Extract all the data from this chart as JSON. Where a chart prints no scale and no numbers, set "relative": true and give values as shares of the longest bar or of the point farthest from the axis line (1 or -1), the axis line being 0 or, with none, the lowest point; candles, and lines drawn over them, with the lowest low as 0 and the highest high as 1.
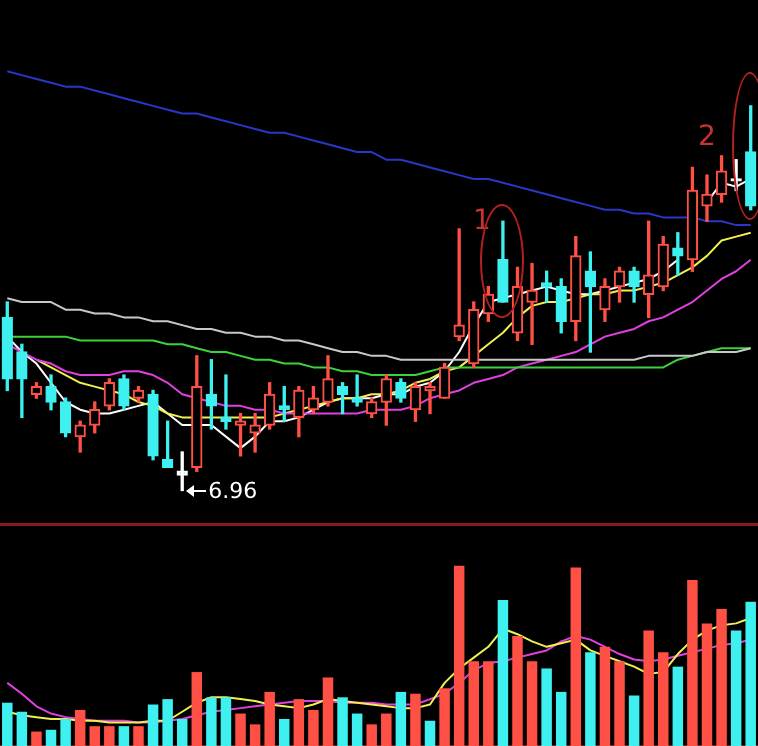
{
  "chart_data": [
    {
      "type": "candlestick",
      "relative": true,
      "categories": [
        null,
        null,
        null,
        null,
        null,
        null,
        null,
        null,
        null,
        null,
        null,
        null,
        null,
        null,
        null,
        null,
        null,
        null,
        null,
        null,
        null,
        null,
        null,
        null,
        null,
        null,
        null,
        null,
        null,
        null,
        null,
        null,
        null,
        null,
        null,
        null,
        null,
        null,
        null,
        null,
        null,
        null,
        null,
        null,
        null,
        null,
        null,
        null,
        null,
        null,
        null,
        null
      ],
      "ohlc": [
        [
          0.45,
          0.49,
          0.26,
          0.29
        ],
        [
          0.36,
          0.38,
          0.19,
          0.29
        ],
        [
          0.25,
          0.28,
          0.24,
          0.27
        ],
        [
          0.27,
          0.3,
          0.21,
          0.23
        ],
        [
          0.23,
          0.24,
          0.14,
          0.15
        ],
        [
          0.14,
          0.18,
          0.1,
          0.17
        ],
        [
          0.17,
          0.23,
          0.15,
          0.21
        ],
        [
          0.22,
          0.29,
          0.21,
          0.28
        ],
        [
          0.29,
          0.3,
          0.21,
          0.22
        ],
        [
          0.24,
          0.27,
          0.23,
          0.26
        ],
        [
          0.25,
          0.26,
          0.08,
          0.09
        ],
        [
          0.08,
          0.18,
          0.06,
          0.06
        ],
        [
          0.05,
          0.1,
          0,
          0.04
        ],
        [
          0.06,
          0.35,
          0.05,
          0.27
        ],
        [
          0.25,
          0.34,
          0.16,
          0.22
        ],
        [
          0.19,
          0.3,
          0.16,
          0.18
        ],
        [
          0.17,
          0.2,
          0.09,
          0.18
        ],
        [
          0.15,
          0.2,
          0.1,
          0.17
        ],
        [
          0.17,
          0.28,
          0.16,
          0.25
        ],
        [
          0.22,
          0.27,
          0.18,
          0.21
        ],
        [
          0.19,
          0.27,
          0.14,
          0.26
        ],
        [
          0.21,
          0.27,
          0.2,
          0.24
        ],
        [
          0.23,
          0.35,
          0.22,
          0.29
        ],
        [
          0.27,
          0.28,
          0.2,
          0.25
        ],
        [
          0.24,
          0.3,
          0.22,
          0.23
        ],
        [
          0.2,
          0.24,
          0.19,
          0.23
        ],
        [
          0.23,
          0.3,
          0.17,
          0.29
        ],
        [
          0.28,
          0.29,
          0.23,
          0.24
        ],
        [
          0.21,
          0.28,
          0.18,
          0.27
        ],
        [
          0.26,
          0.28,
          0.2,
          0.27
        ],
        [
          0.24,
          0.33,
          0.24,
          0.32
        ],
        [
          0.4,
          0.68,
          0.39,
          0.43
        ],
        [
          0.33,
          0.49,
          0.32,
          0.47
        ],
        [
          0.46,
          0.53,
          0.44,
          0.51
        ],
        [
          0.6,
          0.7,
          0.49,
          0.49
        ],
        [
          0.41,
          0.58,
          0.39,
          0.53
        ],
        [
          0.49,
          0.59,
          0.38,
          0.52
        ],
        [
          0.54,
          0.57,
          0.49,
          0.53
        ],
        [
          0.53,
          0.55,
          0.41,
          0.44
        ],
        [
          0.44,
          0.66,
          0.39,
          0.61
        ],
        [
          0.57,
          0.62,
          0.36,
          0.53
        ],
        [
          0.47,
          0.55,
          0.44,
          0.53
        ],
        [
          0.53,
          0.58,
          0.49,
          0.57
        ],
        [
          0.57,
          0.58,
          0.49,
          0.53
        ],
        [
          0.51,
          0.7,
          0.45,
          0.56
        ],
        [
          0.53,
          0.66,
          0.52,
          0.64
        ],
        [
          0.63,
          0.67,
          0.56,
          0.61
        ],
        [
          0.6,
          0.84,
          0.57,
          0.78
        ],
        [
          0.74,
          0.82,
          0.7,
          0.77
        ],
        [
          0.77,
          0.87,
          0.75,
          0.83
        ],
        [
          0.81,
          0.86,
          0.78,
          0.81
        ],
        [
          0.88,
          1,
          0.73,
          0.74
        ]
      ],
      "colors": [
        "#3ef0f0",
        "#3ef0f0",
        "#ff5046",
        "#3ef0f0",
        "#3ef0f0",
        "#ff5046",
        "#ff5046",
        "#ff5046",
        "#3ef0f0",
        "#ff5046",
        "#3ef0f0",
        "#3ef0f0",
        "#ffffff",
        "#ff5046",
        "#3ef0f0",
        "#3ef0f0",
        "#ff5046",
        "#ff5046",
        "#ff5046",
        "#3ef0f0",
        "#ff5046",
        "#ff5046",
        "#ff5046",
        "#3ef0f0",
        "#3ef0f0",
        "#ff5046",
        "#ff5046",
        "#3ef0f0",
        "#ff5046",
        "#ff5046",
        "#ff5046",
        "#ff5046",
        "#ff5046",
        "#ff5046",
        "#3ef0f0",
        "#ff5046",
        "#ff5046",
        "#3ef0f0",
        "#3ef0f0",
        "#ff5046",
        "#3ef0f0",
        "#ff5046",
        "#ff5046",
        "#3ef0f0",
        "#ff5046",
        "#ff5046",
        "#3ef0f0",
        "#ff5046",
        "#ff5046",
        "#ff5046",
        "#ffffff",
        "#3ef0f0"
      ],
      "series": [
        {
          "type": "line",
          "color": "#2a36c8",
          "values": [
            1.09,
            1.08,
            1.07,
            1.06,
            1.05,
            1.05,
            1.04,
            1.03,
            1.02,
            1.01,
            1.0,
            0.99,
            0.98,
            0.98,
            0.97,
            0.96,
            0.95,
            0.94,
            0.93,
            0.93,
            0.92,
            0.91,
            0.9,
            0.89,
            0.88,
            0.88,
            0.86,
            0.86,
            0.85,
            0.84,
            0.83,
            0.82,
            0.81,
            0.81,
            0.8,
            0.79,
            0.78,
            0.77,
            0.76,
            0.75,
            0.74,
            0.73,
            0.73,
            0.72,
            0.72,
            0.71,
            0.71,
            0.71,
            0.7,
            0.7,
            0.69,
            0.69
          ]
        },
        {
          "type": "line",
          "color": "#c8c8c8",
          "values": [
            0.5,
            0.49,
            0.49,
            0.49,
            0.47,
            0.47,
            0.46,
            0.46,
            0.45,
            0.45,
            0.44,
            0.44,
            0.43,
            0.42,
            0.42,
            0.41,
            0.41,
            0.4,
            0.4,
            0.39,
            0.39,
            0.38,
            0.37,
            0.36,
            0.36,
            0.35,
            0.35,
            0.34,
            0.34,
            0.34,
            0.34,
            0.34,
            0.34,
            0.34,
            0.34,
            0.34,
            0.34,
            0.34,
            0.34,
            0.34,
            0.34,
            0.34,
            0.34,
            0.34,
            0.35,
            0.35,
            0.35,
            0.35,
            0.36,
            0.36,
            0.36,
            0.37
          ]
        },
        {
          "type": "line",
          "color": "#3cd23c",
          "values": [
            0.4,
            0.4,
            0.4,
            0.4,
            0.4,
            0.39,
            0.39,
            0.39,
            0.39,
            0.39,
            0.39,
            0.38,
            0.38,
            0.37,
            0.36,
            0.36,
            0.35,
            0.34,
            0.34,
            0.33,
            0.33,
            0.32,
            0.32,
            0.31,
            0.31,
            0.3,
            0.3,
            0.3,
            0.3,
            0.31,
            0.32,
            0.32,
            0.32,
            0.32,
            0.32,
            0.32,
            0.32,
            0.32,
            0.32,
            0.32,
            0.32,
            0.32,
            0.32,
            0.32,
            0.32,
            0.32,
            0.34,
            0.35,
            0.36,
            0.37,
            0.37,
            0.37
          ]
        },
        {
          "type": "line",
          "color": "#e040e0",
          "values": [
            0.38,
            0.36,
            0.34,
            0.33,
            0.31,
            0.3,
            0.3,
            0.3,
            0.31,
            0.31,
            0.3,
            0.28,
            0.25,
            0.24,
            0.23,
            0.22,
            0.22,
            0.21,
            0.21,
            0.2,
            0.2,
            0.2,
            0.2,
            0.2,
            0.2,
            0.21,
            0.21,
            0.21,
            0.22,
            0.24,
            0.25,
            0.26,
            0.28,
            0.29,
            0.3,
            0.32,
            0.33,
            0.34,
            0.35,
            0.36,
            0.38,
            0.4,
            0.41,
            0.42,
            0.44,
            0.45,
            0.47,
            0.49,
            0.52,
            0.55,
            0.57,
            0.6
          ]
        },
        {
          "type": "line",
          "color": "#f0f050",
          "values": [
            null,
            null,
            0.34,
            0.32,
            0.3,
            0.28,
            0.27,
            0.26,
            0.25,
            0.23,
            0.22,
            0.2,
            0.19,
            0.19,
            0.19,
            0.19,
            0.19,
            0.19,
            0.19,
            0.2,
            0.21,
            0.22,
            0.23,
            0.24,
            0.24,
            0.25,
            0.25,
            0.26,
            0.28,
            0.29,
            0.31,
            0.32,
            0.35,
            0.38,
            0.41,
            0.45,
            0.48,
            0.49,
            0.49,
            0.5,
            0.51,
            0.51,
            0.52,
            0.52,
            0.53,
            0.54,
            0.56,
            0.58,
            0.61,
            0.65,
            0.66,
            0.67
          ]
        },
        {
          "type": "line",
          "color": "#ffffff",
          "values": [
            0.4,
            0.36,
            0.33,
            0.28,
            0.23,
            0.21,
            0.2,
            0.2,
            0.21,
            0.22,
            0.23,
            0.2,
            0.17,
            0.17,
            0.17,
            0.14,
            0.11,
            0.14,
            0.18,
            0.18,
            0.19,
            0.21,
            0.23,
            0.24,
            0.24,
            0.24,
            0.25,
            0.25,
            0.27,
            0.28,
            0.31,
            0.36,
            0.43,
            0.49,
            0.5,
            0.51,
            0.52,
            0.53,
            0.52,
            0.51,
            0.51,
            0.52,
            0.53,
            0.54,
            0.55,
            0.57,
            0.6,
            null,
            0.75,
            0.8,
            0.79,
            0.81
          ]
        }
      ],
      "annotations": [
        "6.96",
        "1",
        "2"
      ]
    },
    {
      "type": "bar",
      "relative": true,
      "categories": [
        null,
        null,
        null,
        null,
        null,
        null,
        null,
        null,
        null,
        null,
        null,
        null,
        null,
        null,
        null,
        null,
        null,
        null,
        null,
        null,
        null,
        null,
        null,
        null,
        null,
        null,
        null,
        null,
        null,
        null,
        null,
        null,
        null,
        null,
        null,
        null,
        null,
        null,
        null,
        null,
        null,
        null,
        null,
        null,
        null,
        null,
        null,
        null,
        null,
        null,
        null,
        null
      ],
      "series": [
        {
          "type": "bar",
          "colors": [
            "#3ef0f0",
            "#3ef0f0",
            "#ff5046",
            "#3ef0f0",
            "#3ef0f0",
            "#ff5046",
            "#ff5046",
            "#ff5046",
            "#3ef0f0",
            "#ff5046",
            "#3ef0f0",
            "#3ef0f0",
            "#3ef0f0",
            "#ff5046",
            "#3ef0f0",
            "#3ef0f0",
            "#ff5046",
            "#ff5046",
            "#ff5046",
            "#3ef0f0",
            "#ff5046",
            "#ff5046",
            "#ff5046",
            "#3ef0f0",
            "#3ef0f0",
            "#ff5046",
            "#ff5046",
            "#3ef0f0",
            "#ff5046",
            "#3ef0f0",
            "#ff5046",
            "#ff5046",
            "#ff5046",
            "#ff5046",
            "#3ef0f0",
            "#ff5046",
            "#ff5046",
            "#3ef0f0",
            "#3ef0f0",
            "#ff5046",
            "#3ef0f0",
            "#ff5046",
            "#ff5046",
            "#3ef0f0",
            "#ff5046",
            "#ff5046",
            "#3ef0f0",
            "#ff5046",
            "#ff5046",
            "#ff5046",
            "#3ef0f0",
            "#3ef0f0"
          ],
          "values": [
            0.24,
            0.19,
            0.08,
            0.09,
            0.15,
            0.2,
            0.11,
            0.11,
            0.11,
            0.11,
            0.23,
            0.26,
            0.15,
            0.41,
            0.27,
            0.27,
            0.18,
            0.12,
            0.3,
            0.15,
            0.26,
            0.2,
            0.38,
            0.27,
            0.18,
            0.12,
            0.18,
            0.3,
            0.29,
            0.14,
            0.32,
            1,
            0.47,
            0.47,
            0.81,
            0.61,
            0.47,
            0.43,
            0.3,
            0.99,
            0.52,
            0.55,
            0.47,
            0.28,
            0.64,
            0.52,
            0.44,
            0.92,
            0.68,
            0.76,
            0.64,
            0.8
          ]
        },
        {
          "type": "line",
          "color": "#f0f050",
          "values": [
            0.19,
            0.17,
            0.16,
            0.15,
            0.15,
            0.14,
            0.14,
            0.13,
            0.13,
            0.13,
            0.14,
            0.14,
            0.19,
            0.24,
            0.27,
            0.27,
            0.26,
            0.25,
            0.23,
            0.22,
            0.21,
            0.23,
            0.26,
            0.25,
            0.24,
            0.23,
            0.22,
            0.21,
            0.21,
            0.23,
            0.35,
            0.43,
            0.49,
            0.55,
            0.65,
            0.62,
            0.58,
            0.55,
            0.57,
            0.59,
            0.53,
            0.5,
            0.47,
            0.44,
            0.4,
            0.41,
            0.51,
            0.59,
            0.64,
            0.67,
            0.68,
            0.71
          ]
        },
        {
          "type": "line",
          "color": "#e040e0",
          "values": [
            0.35,
            0.29,
            0.22,
            0.18,
            0.16,
            0.15,
            0.14,
            0.14,
            0.14,
            0.13,
            0.13,
            0.14,
            0.15,
            0.17,
            0.19,
            0.2,
            0.21,
            0.22,
            0.23,
            0.24,
            0.25,
            0.25,
            0.25,
            0.24,
            0.24,
            0.24,
            0.23,
            0.23,
            0.23,
            0.26,
            0.29,
            0.35,
            0.42,
            0.46,
            0.47,
            0.49,
            0.51,
            0.53,
            0.58,
            0.61,
            0.59,
            0.55,
            0.51,
            0.48,
            0.47,
            0.48,
            0.5,
            0.52,
            0.54,
            0.56,
            0.57,
            0.59
          ]
        }
      ]
    }
  ]
}
